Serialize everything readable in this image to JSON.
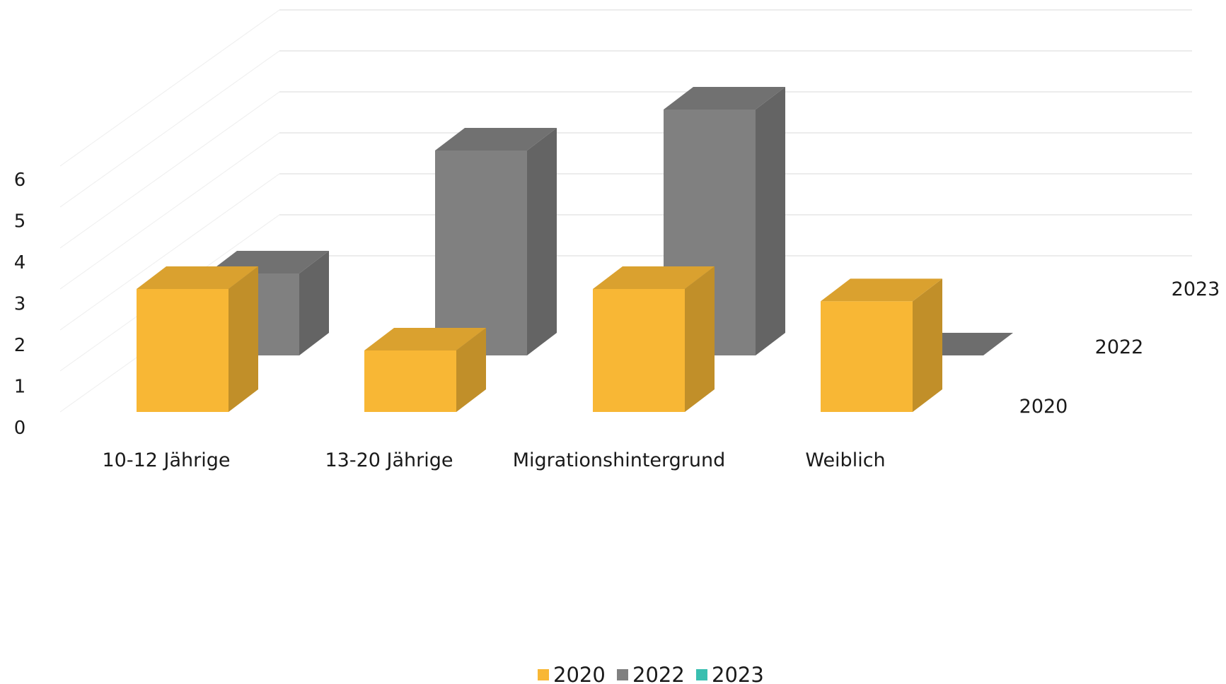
{
  "chart_data": {
    "type": "bar",
    "subtype": "3d-column",
    "categories": [
      "10-12 Jährige",
      "13-20 Jährige",
      "Migrationshintergrund",
      "Weiblich"
    ],
    "series": [
      {
        "name": "2020",
        "values": [
          3,
          1.5,
          3,
          2.7
        ],
        "color": "#F8B735"
      },
      {
        "name": "2022",
        "values": [
          2,
          5,
          6,
          0
        ],
        "color": "#808080"
      },
      {
        "name": "2023",
        "values": [
          0,
          0,
          0,
          0
        ],
        "color": "#39BFB0"
      }
    ],
    "y_ticks": [
      "0",
      "1",
      "2",
      "3",
      "4",
      "5",
      "6"
    ],
    "depth_labels": [
      "2020",
      "2022",
      "2023"
    ],
    "ylim": [
      0,
      6
    ],
    "grid": true,
    "legend": "bottom",
    "title": "",
    "xlabel": "",
    "ylabel": ""
  }
}
